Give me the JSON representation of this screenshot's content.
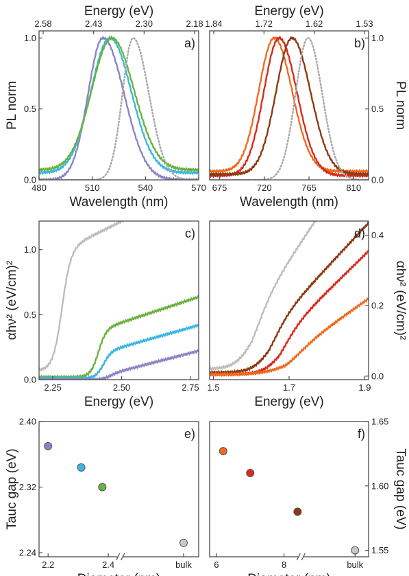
{
  "chart_data": [
    {
      "panel": "a)",
      "type": "line",
      "xlabel": "Wavelength (nm)",
      "ylabel": "PL norm",
      "x2label": "Energy (eV)",
      "xlim": [
        480,
        570
      ],
      "ylim": [
        0,
        1.05
      ],
      "xticks": [
        "480",
        "510",
        "540",
        "570"
      ],
      "yticks": [
        "0.0",
        "0.5",
        "1.0"
      ],
      "x2ticks": [
        "2.58",
        "2.43",
        "2.30",
        "2.18"
      ],
      "series": [
        {
          "color": "#8b84c4",
          "style": "solid",
          "shape": "gauss",
          "peak": 516,
          "wl": 14,
          "wr": 20,
          "base": 0.0
        },
        {
          "color": "#3ab7e3",
          "style": "solid",
          "shape": "gauss",
          "peak": 520,
          "wl": 18,
          "wr": 20,
          "base": 0.05
        },
        {
          "color": "#6ab23e",
          "style": "solid",
          "shape": "gauss",
          "peak": 521,
          "wl": 19,
          "wr": 21,
          "base": 0.07
        },
        {
          "color": "#aaaaaa",
          "style": "dotted",
          "shape": "gauss",
          "peak": 533,
          "wl": 10,
          "wr": 15,
          "base": 0.0
        }
      ]
    },
    {
      "panel": "b)",
      "type": "line",
      "xlabel": "Wavelength (nm)",
      "ylabel": "PL norm",
      "x2label": "Energy (eV)",
      "xlim": [
        665,
        825
      ],
      "ylim": [
        0,
        1.05
      ],
      "xticks": [
        "675",
        "720",
        "765",
        "810"
      ],
      "yticks": [
        "0.0",
        "0.5",
        "1.0"
      ],
      "x2ticks": [
        "1.84",
        "1.72",
        "1.62",
        "1.53"
      ],
      "series": [
        {
          "color": "#ef6a1e",
          "style": "solid",
          "shape": "gauss",
          "peak": 730,
          "wl": 26,
          "wr": 30,
          "base": 0.06
        },
        {
          "color": "#d92a1c",
          "style": "solid",
          "shape": "gauss",
          "peak": 735,
          "wl": 26,
          "wr": 30,
          "base": 0.03
        },
        {
          "color": "#8c3a10",
          "style": "solid",
          "shape": "gauss",
          "peak": 748,
          "wl": 27,
          "wr": 31,
          "base": 0.04
        },
        {
          "color": "#aaaaaa",
          "style": "dotted",
          "shape": "gauss",
          "peak": 764,
          "wl": 21,
          "wr": 24,
          "base": 0.0
        }
      ]
    },
    {
      "panel": "c)",
      "type": "line",
      "xlabel": "Energy (eV)",
      "ylabel": "αhν² (eV/cm)²",
      "xlim": [
        2.2,
        2.78
      ],
      "ylim": [
        0,
        1.22
      ],
      "xticks": [
        "2.25",
        "2.50",
        "2.75"
      ],
      "xtick_values": [
        2.25,
        2.5,
        2.75
      ],
      "yticks": [
        "0.0",
        "0.5",
        "1.0"
      ],
      "series": [
        {
          "color": "#bdbdbd",
          "shape": "tauc",
          "onset": 2.282,
          "rise": 0.016,
          "plateau": 0.92,
          "slope": 1.05,
          "base": 0.07
        },
        {
          "color": "#6ab23e",
          "shape": "tauc",
          "onset": 2.414,
          "rise": 0.014,
          "plateau": 0.36,
          "slope": 0.7,
          "base": 0.02
        },
        {
          "color": "#3ab7e3",
          "shape": "tauc",
          "onset": 2.432,
          "rise": 0.014,
          "plateau": 0.2,
          "slope": 0.6,
          "base": 0.01
        },
        {
          "color": "#8b84c4",
          "shape": "tauc",
          "onset": 2.45,
          "rise": 0.014,
          "plateau": 0.04,
          "slope": 0.55,
          "base": 0.0
        }
      ]
    },
    {
      "panel": "d)",
      "type": "line",
      "xlabel": "Energy (eV)",
      "ylabel": "αhν² (eV/cm)²",
      "xlim": [
        1.49,
        1.91
      ],
      "ylim": [
        -0.01,
        0.44
      ],
      "xticks": [
        "1.5",
        "1.7",
        "1.9"
      ],
      "xtick_values": [
        1.5,
        1.7,
        1.9
      ],
      "yticks": [
        "0.0",
        "0.2",
        "0.4"
      ],
      "series": [
        {
          "color": "#bdbdbd",
          "shape": "tauc",
          "onset": 1.6,
          "rise": 0.022,
          "plateau": 0.15,
          "slope": 1.6,
          "base": 0.02
        },
        {
          "color": "#8c3a10",
          "shape": "tauc",
          "onset": 1.645,
          "rise": 0.022,
          "plateau": 0.12,
          "slope": 1.15,
          "base": 0.01
        },
        {
          "color": "#d92a1c",
          "shape": "tauc",
          "onset": 1.672,
          "rise": 0.022,
          "plateau": 0.1,
          "slope": 1.05,
          "base": 0.005
        },
        {
          "color": "#ef6a1e",
          "shape": "tauc",
          "onset": 1.69,
          "rise": 0.03,
          "plateau": 0.05,
          "slope": 0.75,
          "base": 0.005
        }
      ]
    },
    {
      "panel": "e)",
      "type": "scatter",
      "xlabel": "Diameter (nm)",
      "ylabel": "Tauc gap (eV)",
      "xlim": [
        2.17,
        2.7
      ],
      "ylim": [
        2.235,
        2.4
      ],
      "xticks": [
        "2.2",
        "2.4",
        "bulk"
      ],
      "xtick_values": [
        2.2,
        2.4,
        2.65
      ],
      "yticks": [
        "2.24",
        "2.32",
        "2.40"
      ],
      "ytick_values": [
        2.24,
        2.32,
        2.4
      ],
      "axis_break_x": 2.44,
      "points": [
        {
          "x": 2.2,
          "y": 2.37,
          "color": "#8b84c4"
        },
        {
          "x": 2.31,
          "y": 2.344,
          "color": "#3ab7e3"
        },
        {
          "x": 2.38,
          "y": 2.32,
          "color": "#6ab23e"
        },
        {
          "x": 2.65,
          "y": 2.252,
          "color": "#c8c8c8"
        }
      ]
    },
    {
      "panel": "f)",
      "type": "scatter",
      "xlabel": "Diameter (nm)",
      "ylabel": "Tauc gap (eV)",
      "xlim": [
        5.8,
        10.5
      ],
      "ylim": [
        1.545,
        1.65
      ],
      "xticks": [
        "6",
        "8",
        "bulk"
      ],
      "xtick_values": [
        6,
        8,
        10.1
      ],
      "yticks": [
        "1.55",
        "1.60",
        "1.65"
      ],
      "ytick_values": [
        1.55,
        1.6,
        1.65
      ],
      "axis_break_x": 8.5,
      "points": [
        {
          "x": 6.2,
          "y": 1.627,
          "color": "#ef6a1e"
        },
        {
          "x": 7.0,
          "y": 1.61,
          "color": "#d92a1c"
        },
        {
          "x": 8.4,
          "y": 1.58,
          "color": "#8c3a10"
        },
        {
          "x": 10.1,
          "y": 1.55,
          "color": "#c8c8c8"
        }
      ]
    }
  ]
}
